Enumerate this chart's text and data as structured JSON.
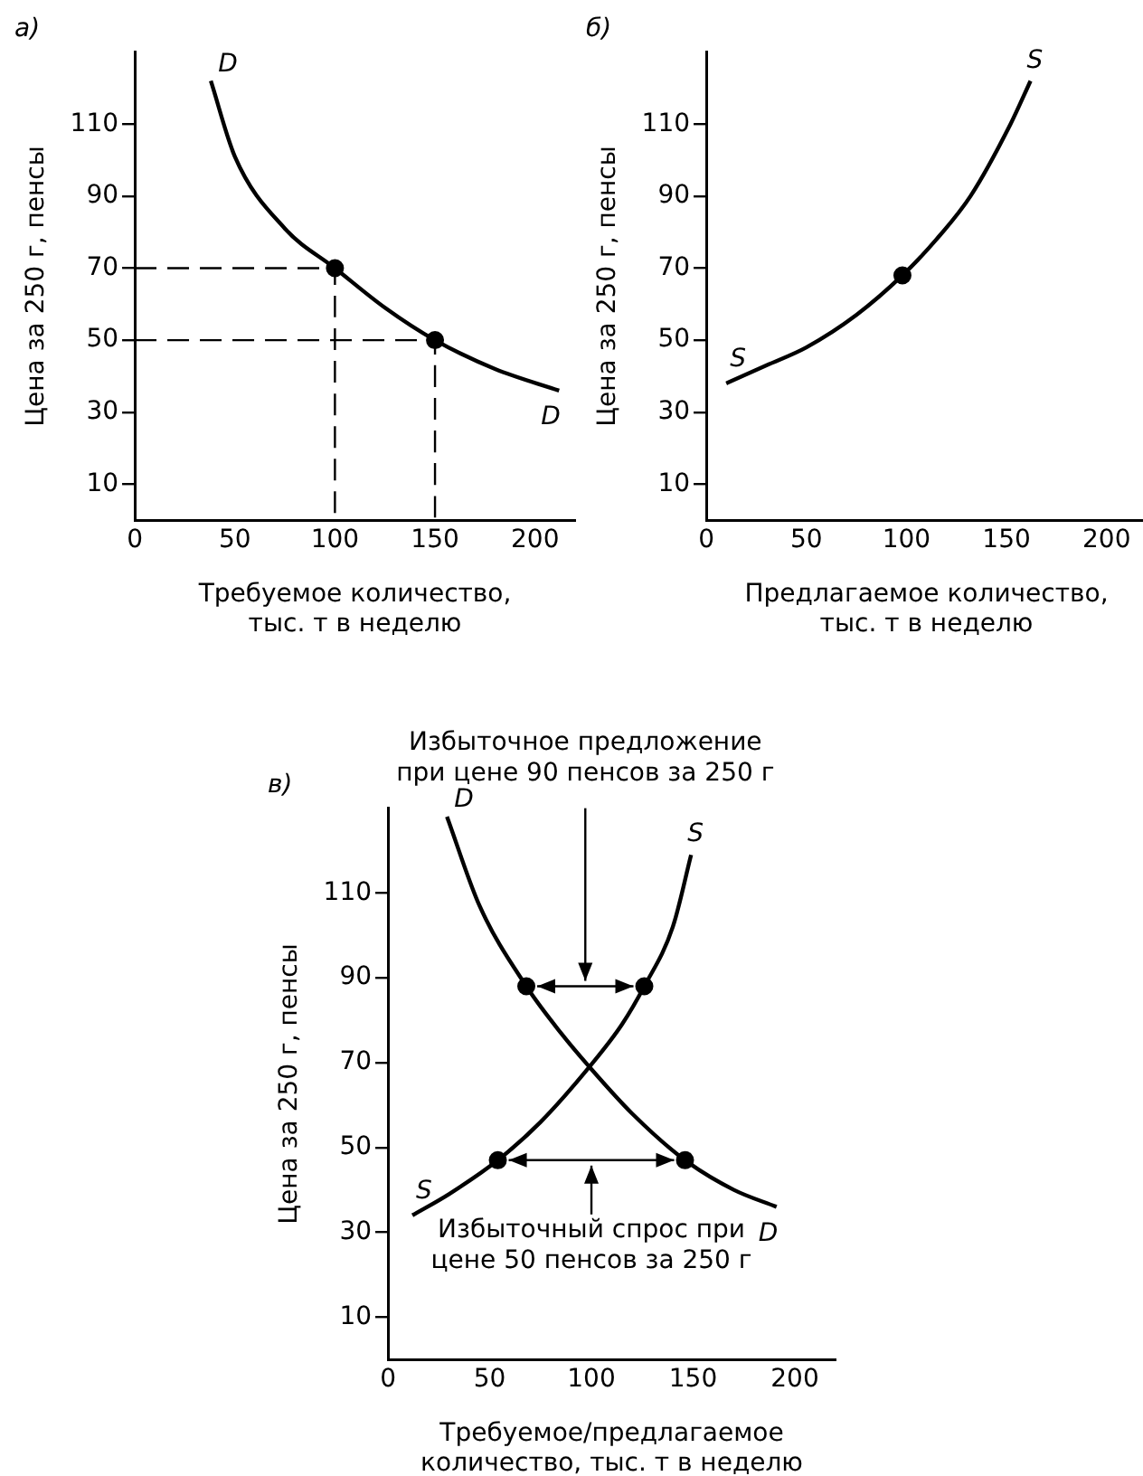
{
  "chart_data": [
    {
      "type": "line",
      "title": "а)",
      "xlabel": "Требуемое количество,\nтыс. т в неделю",
      "ylabel": "Цена за 250 г, пенсы",
      "xlim": [
        0,
        220
      ],
      "ylim": [
        0,
        130
      ],
      "xticks": [
        0,
        50,
        100,
        150,
        200
      ],
      "yticks": [
        10,
        30,
        50,
        70,
        90,
        110
      ],
      "grid": false,
      "legend": false,
      "series": [
        {
          "name": "D",
          "type": "line",
          "color": "#000000",
          "marker": "none",
          "line_style": "solid",
          "x": [
            38,
            50,
            75,
            100,
            125,
            150,
            180,
            212
          ],
          "values": [
            122,
            101,
            81,
            70,
            59,
            50,
            42,
            36
          ]
        },
        {
          "type": "line",
          "color": "#000000",
          "marker": "none",
          "line_style": "dashed",
          "x": [
            0,
            100,
            100
          ],
          "values": [
            70,
            70,
            0
          ]
        },
        {
          "type": "line",
          "color": "#000000",
          "marker": "none",
          "line_style": "dashed",
          "x": [
            0,
            150,
            150
          ],
          "values": [
            50,
            50,
            0
          ]
        },
        {
          "type": "scatter",
          "color": "#000000",
          "marker": "circle",
          "x": [
            100,
            150
          ],
          "values": [
            70,
            50
          ]
        }
      ]
    },
    {
      "type": "line",
      "title": "б)",
      "xlabel": "Предлагаемое количество,\nтыс. т в неделю",
      "ylabel": "Цена за 250 г, пенсы",
      "xlim": [
        0,
        220
      ],
      "ylim": [
        0,
        130
      ],
      "xticks": [
        0,
        50,
        100,
        150,
        200
      ],
      "yticks": [
        10,
        30,
        50,
        70,
        90,
        110
      ],
      "grid": false,
      "legend": false,
      "series": [
        {
          "name": "S",
          "type": "line",
          "color": "#000000",
          "marker": "none",
          "line_style": "solid",
          "x": [
            10,
            30,
            50,
            75,
            98,
            115,
            132,
            152,
            162
          ],
          "values": [
            38,
            43,
            48,
            57,
            68,
            78,
            90,
            110,
            122
          ]
        },
        {
          "type": "scatter",
          "color": "#000000",
          "marker": "circle",
          "x": [
            98
          ],
          "values": [
            68
          ]
        }
      ]
    },
    {
      "type": "line",
      "title": "в)",
      "xlabel": "Требуемое/предлагаемое\nколичество, тыс. т в неделю",
      "ylabel": "Цена за 250 г, пенсы",
      "xlim": [
        0,
        220
      ],
      "ylim": [
        0,
        130
      ],
      "xticks": [
        0,
        50,
        100,
        150,
        200
      ],
      "yticks": [
        10,
        30,
        50,
        70,
        90,
        110
      ],
      "grid": false,
      "legend": false,
      "annotations": [
        "Избыточное предложение\nпри цене 90 пенсов за 250 г",
        "Избыточный спрос при\nцене 50 пенсов за 250 г"
      ],
      "series": [
        {
          "name": "D",
          "type": "line",
          "color": "#000000",
          "marker": "none",
          "line_style": "solid",
          "x": [
            29,
            45,
            68,
            85,
            99,
            120,
            146,
            170,
            191
          ],
          "values": [
            128,
            107,
            88,
            77,
            69,
            58,
            47,
            40,
            36
          ]
        },
        {
          "name": "S",
          "type": "line",
          "color": "#000000",
          "marker": "none",
          "line_style": "solid",
          "x": [
            12,
            30,
            54,
            75,
            99,
            115,
            126,
            140,
            149
          ],
          "values": [
            34,
            39,
            47,
            56,
            69,
            79,
            88,
            102,
            119
          ]
        },
        {
          "type": "scatter",
          "color": "#000000",
          "marker": "circle",
          "x": [
            68,
            126,
            54,
            146
          ],
          "values": [
            88,
            88,
            47,
            47
          ]
        }
      ]
    }
  ]
}
